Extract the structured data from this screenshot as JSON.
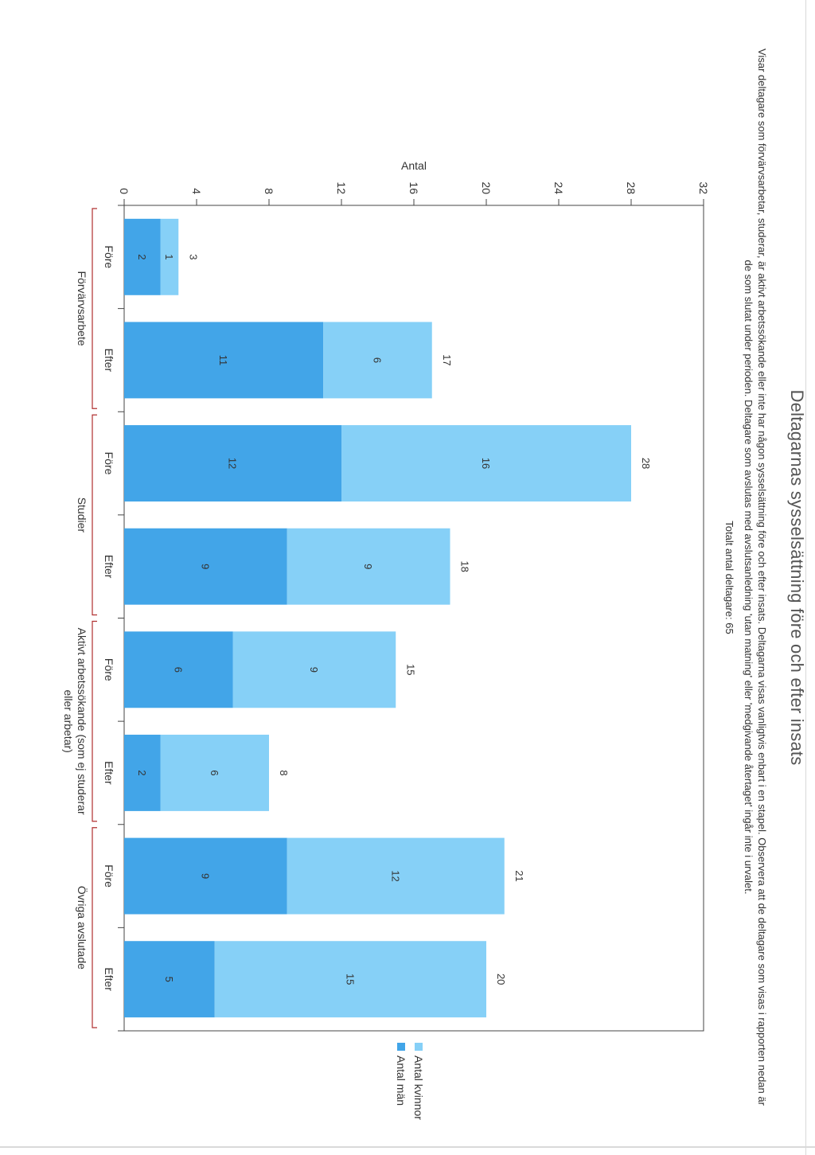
{
  "chart_data": {
    "type": "bar",
    "stacked": true,
    "title": "Deltagarnas sysselsättning före och efter insats",
    "subtitle": "Visar deltagare som förvärvsarbetar, studerar, är aktivt arbetssökande eller inte har någon sysselsättning före och efter insats. Deltagarna visas vanligtvis enbart i en stapel. Observera att de deltagare som visas i rapporten nedan är de som slutat under perioden. Deltagare som avslutas med avslutsanledning 'utan matning' eller 'medgivande återtaget' ingår inte i urvalet.",
    "total_label": "Totalt antal deltagare: 65",
    "ylabel": "Antal",
    "ylim": [
      0,
      32
    ],
    "yticks": [
      "0",
      "4",
      "8",
      "12",
      "16",
      "20",
      "24",
      "28",
      "32"
    ],
    "legend_position": "right",
    "categories": [
      "Före",
      "Efter",
      "Före",
      "Efter",
      "Före",
      "Efter",
      "Före",
      "Efter"
    ],
    "groups": [
      {
        "label": "Förvärvsarbete",
        "size": 2
      },
      {
        "label": "Studier",
        "size": 2
      },
      {
        "label": "Aktivt arbetssökande (som ej studerar eller arbetar)",
        "size": 2
      },
      {
        "label": "Övriga avslutade",
        "size": 2
      }
    ],
    "series": [
      {
        "name": "Antal män",
        "values": [
          2,
          11,
          12,
          9,
          6,
          2,
          9,
          5
        ],
        "color": "#42a5e8"
      },
      {
        "name": "Antal kvinnor",
        "values": [
          1,
          6,
          16,
          9,
          9,
          6,
          12,
          15
        ],
        "color": "#86d0f7"
      }
    ],
    "totals": [
      3,
      17,
      28,
      18,
      15,
      8,
      21,
      20
    ]
  }
}
